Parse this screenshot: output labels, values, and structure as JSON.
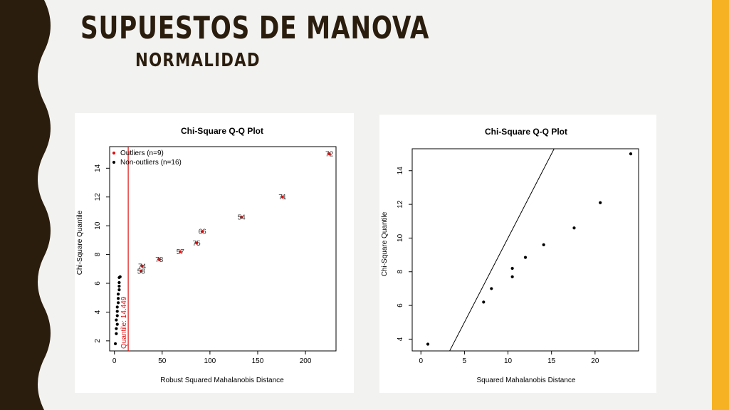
{
  "slide": {
    "title": "SUPUESTOS DE MANOVA",
    "subtitle": "NORMALIDAD",
    "colors": {
      "background": "#f2f2f0",
      "left_band": "#2b1d0e",
      "accent_bar": "#f6b223",
      "title_text": "#2b1d0e",
      "outlier": "#e01010"
    }
  },
  "chart_data": [
    {
      "type": "scatter",
      "title": "Chi-Square Q-Q Plot",
      "xlabel": "Robust Squared Mahalanobis Distance",
      "ylabel": "Chi-Square Quantile",
      "xlim": [
        -5,
        232
      ],
      "ylim": [
        1.3,
        15.5
      ],
      "xticks": [
        0,
        50,
        100,
        150,
        200
      ],
      "yticks": [
        2,
        4,
        6,
        8,
        10,
        12,
        14
      ],
      "legend": {
        "position": "top-left",
        "entries": [
          "Outliers (n=9)",
          "Non-outliers (n=16)"
        ]
      },
      "cutoff": {
        "value": 14.449,
        "label": "Quantile: 14.449"
      },
      "series": [
        {
          "name": "Outliers (n=9)",
          "color": "#e01010",
          "points": [
            {
              "x": 28,
              "y": 6.85,
              "label": "58"
            },
            {
              "x": 29,
              "y": 7.2,
              "label": "74"
            },
            {
              "x": 47,
              "y": 7.65,
              "label": "78"
            },
            {
              "x": 69,
              "y": 8.2,
              "label": "57"
            },
            {
              "x": 86,
              "y": 8.8,
              "label": "75"
            },
            {
              "x": 92,
              "y": 9.6,
              "label": "66"
            },
            {
              "x": 133,
              "y": 10.6,
              "label": "54"
            },
            {
              "x": 176,
              "y": 12.0,
              "label": "71"
            },
            {
              "x": 225,
              "y": 15.0,
              "label": "72"
            }
          ]
        },
        {
          "name": "Non-outliers (n=16)",
          "color": "#000000",
          "points": [
            {
              "x": 1,
              "y": 1.8
            },
            {
              "x": 2,
              "y": 2.5
            },
            {
              "x": 2,
              "y": 2.85
            },
            {
              "x": 3,
              "y": 3.15
            },
            {
              "x": 2,
              "y": 3.45
            },
            {
              "x": 3,
              "y": 3.75
            },
            {
              "x": 3,
              "y": 4.05
            },
            {
              "x": 3,
              "y": 4.35
            },
            {
              "x": 4,
              "y": 4.65
            },
            {
              "x": 4,
              "y": 4.95
            },
            {
              "x": 4,
              "y": 5.25
            },
            {
              "x": 5,
              "y": 5.55
            },
            {
              "x": 5,
              "y": 5.8
            },
            {
              "x": 5,
              "y": 6.05
            },
            {
              "x": 5,
              "y": 6.4
            },
            {
              "x": 6,
              "y": 6.45
            }
          ]
        }
      ]
    },
    {
      "type": "scatter",
      "title": "Chi-Square Q-Q Plot",
      "xlabel": "Squared Mahalanobis Distance",
      "ylabel": "Chi-Square Quantile",
      "xlim": [
        -1,
        25
      ],
      "ylim": [
        3.3,
        15.3
      ],
      "xticks": [
        0,
        5,
        10,
        15,
        20
      ],
      "yticks": [
        4,
        6,
        8,
        10,
        12,
        14
      ],
      "reference_line": {
        "intercept": 0,
        "slope": 1
      },
      "series": [
        {
          "points": [
            {
              "x": 0.8,
              "y": 3.7
            },
            {
              "x": 7.2,
              "y": 6.2
            },
            {
              "x": 8.1,
              "y": 7.0
            },
            {
              "x": 10.5,
              "y": 7.7
            },
            {
              "x": 10.5,
              "y": 8.2
            },
            {
              "x": 12.0,
              "y": 8.85
            },
            {
              "x": 14.1,
              "y": 9.6
            },
            {
              "x": 17.6,
              "y": 10.6
            },
            {
              "x": 20.6,
              "y": 12.1
            },
            {
              "x": 24.1,
              "y": 15.0
            }
          ]
        }
      ]
    }
  ]
}
